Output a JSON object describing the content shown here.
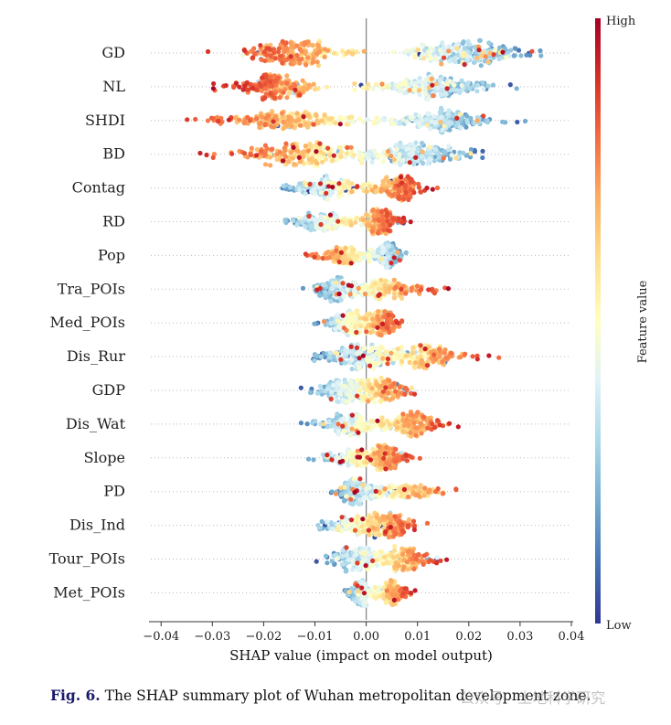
{
  "chart_data": {
    "type": "scatter",
    "subtype": "shap-beeswarm",
    "xlabel": "SHAP value (impact on model output)",
    "xlim": [
      -0.042,
      0.04
    ],
    "xticks": [
      -0.04,
      -0.03,
      -0.02,
      -0.01,
      0.0,
      0.01,
      0.02,
      0.03,
      0.04
    ],
    "xtick_labels": [
      "−0.04",
      "−0.03",
      "−0.02",
      "−0.01",
      "0.00",
      "0.01",
      "0.02",
      "0.03",
      "0.04"
    ],
    "colorbar": {
      "label": "Feature value",
      "high": "High",
      "low": "Low",
      "colors": [
        "#313695",
        "#4575b4",
        "#74add1",
        "#abd9e9",
        "#e0f3f8",
        "#ffffbf",
        "#fee090",
        "#fdae61",
        "#f46d43",
        "#d73027",
        "#a50026"
      ]
    },
    "features": [
      {
        "name": "GD",
        "min": -0.031,
        "max": 0.037,
        "center_neg": -0.015,
        "center_pos": 0.019,
        "dir": 1
      },
      {
        "name": "NL",
        "min": -0.03,
        "max": 0.031,
        "center_neg": -0.018,
        "center_pos": 0.013,
        "dir": 1
      },
      {
        "name": "SHDI",
        "min": -0.038,
        "max": 0.031,
        "center_neg": -0.015,
        "center_pos": 0.015,
        "dir": 1
      },
      {
        "name": "BD",
        "min": -0.034,
        "max": 0.026,
        "center_neg": -0.012,
        "center_pos": 0.009,
        "dir": 1
      },
      {
        "name": "Contag",
        "min": -0.021,
        "max": 0.014,
        "center_neg": -0.008,
        "center_pos": 0.006,
        "dir": -1
      },
      {
        "name": "RD",
        "min": -0.018,
        "max": 0.009,
        "center_neg": -0.008,
        "center_pos": 0.003,
        "dir": -1
      },
      {
        "name": "Pop",
        "min": -0.013,
        "max": 0.009,
        "center_neg": -0.004,
        "center_pos": 0.004,
        "dir": 1
      },
      {
        "name": "Tra_POIs",
        "min": -0.013,
        "max": 0.016,
        "center_neg": -0.006,
        "center_pos": 0.003,
        "dir": -1
      },
      {
        "name": "Med_POIs",
        "min": -0.011,
        "max": 0.008,
        "center_neg": -0.003,
        "center_pos": 0.003,
        "dir": -1
      },
      {
        "name": "Dis_Rur",
        "min": -0.015,
        "max": 0.026,
        "center_neg": -0.002,
        "center_pos": 0.01,
        "dir": -1
      },
      {
        "name": "GDP",
        "min": -0.013,
        "max": 0.012,
        "center_neg": -0.004,
        "center_pos": 0.003,
        "dir": -1
      },
      {
        "name": "Dis_Wat",
        "min": -0.015,
        "max": 0.019,
        "center_neg": -0.003,
        "center_pos": 0.009,
        "dir": -1
      },
      {
        "name": "Slope",
        "min": -0.013,
        "max": 0.011,
        "center_neg": -0.002,
        "center_pos": 0.004,
        "dir": -1
      },
      {
        "name": "PD",
        "min": -0.008,
        "max": 0.019,
        "center_neg": -0.002,
        "center_pos": 0.007,
        "dir": -1
      },
      {
        "name": "Dis_Ind",
        "min": -0.014,
        "max": 0.012,
        "center_neg": -0.002,
        "center_pos": 0.004,
        "dir": -1
      },
      {
        "name": "Tour_POIs",
        "min": -0.01,
        "max": 0.016,
        "center_neg": -0.001,
        "center_pos": 0.008,
        "dir": -1
      },
      {
        "name": "Met_POIs",
        "min": -0.005,
        "max": 0.01,
        "center_neg": -0.001,
        "center_pos": 0.005,
        "dir": -1
      }
    ]
  },
  "caption": {
    "label": "Fig. 6.",
    "text": "The SHAP summary plot of Wuhan metropolitan development zone."
  },
  "watermark": "公众号 · 土地科学研究"
}
